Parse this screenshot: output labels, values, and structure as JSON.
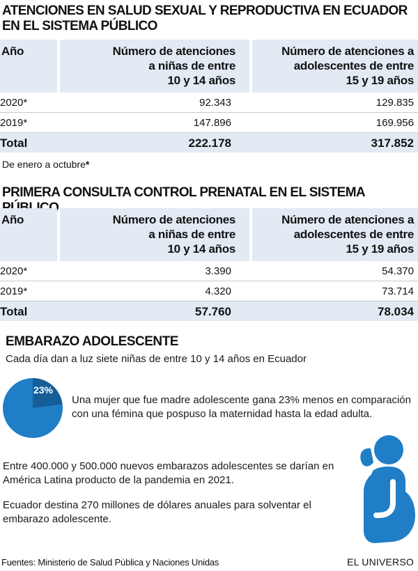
{
  "section1": {
    "title_line1": "ATENCIONES EN SALUD SEXUAL Y REPRODUCTIVA EN ECUADOR",
    "title_line2": "EN EL SISTEMA PÚBLICO",
    "headers": {
      "year": "Año",
      "col1_l1": "Número de atenciones",
      "col1_l2": "a niñas de entre",
      "col1_l3": "10 y 14 años",
      "col2_l1": "Número de atenciones a",
      "col2_l2": "adolescentes de entre",
      "col2_l3": "15 y 19 años"
    },
    "rows": [
      {
        "year": "2020*",
        "col1": "92.343",
        "col2": "129.835"
      },
      {
        "year": "2019*",
        "col1": "147.896",
        "col2": "169.956"
      }
    ],
    "total": {
      "label": "Total",
      "col1": "222.178",
      "col2": "317.852"
    },
    "note_text": "De enero a octubre",
    "note_mark": "*"
  },
  "section2": {
    "title": "PRIMERA CONSULTA CONTROL PRENATAL EN EL SISTEMA PÚBLICO",
    "headers": {
      "year": "Año",
      "col1_l1": "Número de atenciones",
      "col1_l2": "a niñas de entre",
      "col1_l3": "10 y 14 años",
      "col2_l1": "Número de atenciones a",
      "col2_l2": "adolescentes de entre",
      "col2_l3": "15 y 19 años"
    },
    "rows": [
      {
        "year": "2020*",
        "col1": "3.390",
        "col2": "54.370"
      },
      {
        "year": "2019*",
        "col1": "4.320",
        "col2": "73.714"
      }
    ],
    "total": {
      "label": "Total",
      "col1": "57.760",
      "col2": "78.034"
    }
  },
  "section3": {
    "title": "EMBARAZO ADOLESCENTE",
    "intro": "Cada día dan a luz siete niñas de entre 10 y 14 años en Ecuador",
    "pie_label": "23%",
    "pie_fraction": 0.23,
    "pie_color": "#1f7ec6",
    "pie_dark_color": "#155e98",
    "fact1_l1": "Una mujer que fue madre adolescente gana 23% menos en comparación",
    "fact1_l2": "con una fémina que pospuso la maternidad hasta la edad adulta.",
    "fact2_l1": "Entre 400.000 y 500.000 nuevos embarazos adolescentes se darían en",
    "fact2_l2": "América Latina producto de la pandemia en 2021.",
    "fact3_l1": "Ecuador destina 270 millones de dólares anuales para solventar el",
    "fact3_l2": "embarazo adolescente.",
    "icon": "pregnant-woman-icon"
  },
  "footer": {
    "sources": "Fuentes: Ministerio de Salud Pública y Naciones Unidas",
    "brand": "EL UNIVERSO"
  }
}
